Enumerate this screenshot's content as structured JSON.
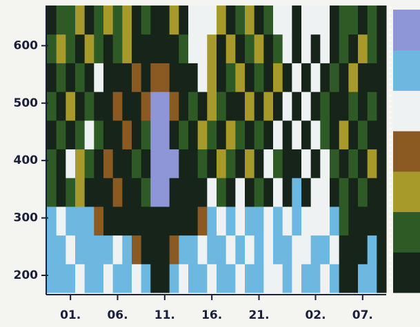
{
  "chart_data": {
    "type": "heatmap",
    "categories": [
      null,
      null,
      "01.",
      null,
      null,
      null,
      null,
      "06.",
      null,
      null,
      null,
      null,
      "11.",
      null,
      null,
      null,
      null,
      "16.",
      null,
      null,
      null,
      null,
      "21.",
      null,
      null,
      null,
      null,
      null,
      "02.",
      null,
      null,
      null,
      null,
      "07.",
      null,
      null
    ],
    "ybins": [
      170,
      220,
      270,
      320,
      370,
      420,
      470,
      520,
      570,
      620,
      670
    ],
    "ylim": [
      170,
      670
    ],
    "yticks": [
      200,
      300,
      400,
      500,
      600
    ],
    "colors": [
      "#16241a",
      "#2e5a26",
      "#a89a2a",
      "#8a5a22",
      "#eef2f2",
      "#6cb8e0",
      "#8f96d8"
    ],
    "values": [
      [
        5,
        5,
        5,
        4,
        5,
        5,
        4,
        5,
        5,
        4,
        5,
        0,
        0,
        5,
        4,
        5,
        5,
        4,
        5,
        5,
        4,
        5,
        5,
        4,
        4,
        5,
        4,
        5,
        5,
        4,
        5,
        0,
        0,
        5,
        5,
        0
      ],
      [
        5,
        5,
        4,
        5,
        5,
        5,
        5,
        4,
        5,
        3,
        0,
        0,
        0,
        3,
        5,
        5,
        4,
        5,
        5,
        4,
        5,
        4,
        5,
        4,
        5,
        5,
        4,
        4,
        5,
        5,
        4,
        0,
        0,
        0,
        5,
        0
      ],
      [
        5,
        4,
        5,
        5,
        5,
        3,
        0,
        0,
        0,
        0,
        0,
        0,
        0,
        0,
        0,
        0,
        3,
        5,
        4,
        5,
        4,
        5,
        5,
        4,
        5,
        4,
        5,
        4,
        4,
        4,
        5,
        1,
        0,
        0,
        0,
        0
      ],
      [
        1,
        0,
        1,
        2,
        0,
        0,
        0,
        3,
        0,
        0,
        1,
        6,
        6,
        0,
        0,
        0,
        0,
        4,
        1,
        0,
        4,
        0,
        1,
        0,
        4,
        0,
        5,
        0,
        4,
        4,
        0,
        1,
        0,
        1,
        0,
        0
      ],
      [
        1,
        0,
        4,
        2,
        1,
        0,
        3,
        0,
        0,
        1,
        0,
        6,
        6,
        6,
        0,
        0,
        1,
        0,
        2,
        1,
        0,
        2,
        0,
        4,
        1,
        0,
        0,
        4,
        0,
        4,
        1,
        0,
        1,
        0,
        2,
        0
      ],
      [
        0,
        1,
        0,
        1,
        4,
        1,
        0,
        0,
        3,
        0,
        1,
        6,
        6,
        0,
        1,
        0,
        2,
        1,
        0,
        2,
        1,
        0,
        1,
        0,
        4,
        0,
        4,
        0,
        4,
        1,
        0,
        2,
        0,
        1,
        0,
        0
      ],
      [
        1,
        0,
        2,
        0,
        1,
        0,
        0,
        3,
        0,
        0,
        3,
        6,
        6,
        3,
        0,
        1,
        0,
        2,
        1,
        0,
        0,
        2,
        0,
        2,
        0,
        4,
        0,
        4,
        0,
        1,
        0,
        0,
        1,
        0,
        1,
        0
      ],
      [
        0,
        1,
        0,
        1,
        0,
        4,
        0,
        0,
        0,
        3,
        0,
        3,
        3,
        0,
        0,
        0,
        4,
        2,
        0,
        1,
        2,
        0,
        1,
        0,
        2,
        0,
        4,
        0,
        4,
        0,
        1,
        0,
        2,
        0,
        0,
        0
      ],
      [
        1,
        2,
        1,
        0,
        2,
        1,
        0,
        1,
        2,
        0,
        0,
        0,
        0,
        0,
        1,
        4,
        4,
        2,
        0,
        2,
        0,
        1,
        2,
        0,
        1,
        4,
        0,
        4,
        0,
        4,
        0,
        1,
        0,
        2,
        1,
        0
      ],
      [
        0,
        1,
        1,
        2,
        0,
        1,
        2,
        1,
        2,
        0,
        1,
        0,
        0,
        2,
        0,
        4,
        4,
        4,
        2,
        0,
        1,
        2,
        0,
        1,
        4,
        4,
        0,
        4,
        4,
        4,
        0,
        1,
        1,
        0,
        1,
        0
      ]
    ]
  }
}
